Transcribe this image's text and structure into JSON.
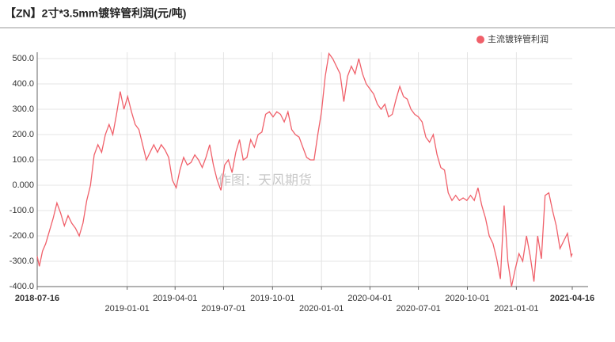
{
  "chart_data": {
    "type": "line",
    "title": "【ZN】2寸*3.5mm镀锌管利润(元/吨)",
    "annotations": [
      "作图：天风期货"
    ],
    "xlim": [
      "2018-07-16",
      "2021-04-16"
    ],
    "xticks": [
      "2018-07-16",
      "2019-01-01",
      "2019-04-01",
      "2019-07-01",
      "2019-10-01",
      "2020-01-01",
      "2020-04-01",
      "2020-07-01",
      "2020-10-01",
      "2021-01-01",
      "2021-04-16"
    ],
    "ylim": [
      -400,
      500
    ],
    "yticks": [
      {
        "value": 500,
        "label": "500.0"
      },
      {
        "value": 400,
        "label": "400.0"
      },
      {
        "value": 300,
        "label": "300.0"
      },
      {
        "value": 200,
        "label": "200.0"
      },
      {
        "value": 100,
        "label": "100.0"
      },
      {
        "value": 0,
        "label": "0.000"
      },
      {
        "value": -100,
        "label": "-100.0"
      },
      {
        "value": -200,
        "label": "-200.0"
      },
      {
        "value": -300,
        "label": "-300.0"
      },
      {
        "value": -400,
        "label": "-400.0"
      }
    ],
    "grid": true,
    "legend": "top-right",
    "x": [
      "2018-07-16",
      "2018-07-20",
      "2018-07-26",
      "2018-08-01",
      "2018-08-08",
      "2018-08-15",
      "2018-08-22",
      "2018-08-29",
      "2018-09-05",
      "2018-09-12",
      "2018-09-19",
      "2018-09-26",
      "2018-10-03",
      "2018-10-10",
      "2018-10-17",
      "2018-10-24",
      "2018-10-31",
      "2018-11-07",
      "2018-11-14",
      "2018-11-21",
      "2018-11-28",
      "2018-12-05",
      "2018-12-12",
      "2018-12-19",
      "2018-12-26",
      "2019-01-02",
      "2019-01-09",
      "2019-01-16",
      "2019-01-23",
      "2019-01-30",
      "2019-02-06",
      "2019-02-13",
      "2019-02-20",
      "2019-02-27",
      "2019-03-06",
      "2019-03-13",
      "2019-03-20",
      "2019-03-27",
      "2019-04-03",
      "2019-04-10",
      "2019-04-17",
      "2019-04-24",
      "2019-05-01",
      "2019-05-08",
      "2019-05-15",
      "2019-05-22",
      "2019-05-29",
      "2019-06-05",
      "2019-06-12",
      "2019-06-19",
      "2019-06-26",
      "2019-07-03",
      "2019-07-10",
      "2019-07-17",
      "2019-07-24",
      "2019-07-31",
      "2019-08-07",
      "2019-08-14",
      "2019-08-21",
      "2019-08-28",
      "2019-09-04",
      "2019-09-11",
      "2019-09-18",
      "2019-09-25",
      "2019-10-02",
      "2019-10-09",
      "2019-10-16",
      "2019-10-23",
      "2019-10-30",
      "2019-11-06",
      "2019-11-13",
      "2019-11-20",
      "2019-11-27",
      "2019-12-04",
      "2019-12-11",
      "2019-12-18",
      "2019-12-25",
      "2020-01-01",
      "2020-01-08",
      "2020-01-15",
      "2020-01-22",
      "2020-02-05",
      "2020-02-12",
      "2020-02-19",
      "2020-02-26",
      "2020-03-04",
      "2020-03-11",
      "2020-03-18",
      "2020-03-25",
      "2020-04-01",
      "2020-04-08",
      "2020-04-15",
      "2020-04-22",
      "2020-04-29",
      "2020-05-06",
      "2020-05-13",
      "2020-05-20",
      "2020-05-27",
      "2020-06-03",
      "2020-06-10",
      "2020-06-17",
      "2020-06-24",
      "2020-07-01",
      "2020-07-08",
      "2020-07-15",
      "2020-07-22",
      "2020-07-29",
      "2020-08-05",
      "2020-08-12",
      "2020-08-19",
      "2020-08-26",
      "2020-09-02",
      "2020-09-09",
      "2020-09-16",
      "2020-09-23",
      "2020-09-30",
      "2020-10-07",
      "2020-10-14",
      "2020-10-21",
      "2020-10-28",
      "2020-11-04",
      "2020-11-11",
      "2020-11-18",
      "2020-11-25",
      "2020-12-02",
      "2020-12-09",
      "2020-12-16",
      "2020-12-23",
      "2020-12-30",
      "2021-01-06",
      "2021-01-13",
      "2021-01-20",
      "2021-01-27",
      "2021-02-03",
      "2021-02-10",
      "2021-02-17",
      "2021-02-24",
      "2021-03-03",
      "2021-03-10",
      "2021-03-17",
      "2021-03-24",
      "2021-03-31",
      "2021-04-07",
      "2021-04-14",
      "2021-04-16"
    ],
    "series": [
      {
        "name": "主流镀锌管利润",
        "color": "#f0606a",
        "values": [
          -280,
          -320,
          -260,
          -230,
          -180,
          -130,
          -70,
          -110,
          -160,
          -120,
          -150,
          -170,
          -200,
          -150,
          -60,
          0,
          120,
          160,
          130,
          200,
          240,
          200,
          280,
          370,
          300,
          350,
          290,
          240,
          220,
          160,
          100,
          130,
          160,
          130,
          160,
          140,
          110,
          20,
          -10,
          60,
          110,
          80,
          90,
          120,
          100,
          70,
          110,
          160,
          80,
          20,
          -20,
          80,
          100,
          50,
          130,
          180,
          100,
          110,
          180,
          150,
          200,
          210,
          280,
          290,
          270,
          290,
          280,
          250,
          290,
          220,
          200,
          190,
          150,
          110,
          100,
          100,
          200,
          290,
          430,
          520,
          500,
          440,
          330,
          430,
          470,
          440,
          500,
          440,
          400,
          380,
          360,
          320,
          300,
          320,
          270,
          280,
          340,
          390,
          350,
          340,
          300,
          280,
          270,
          250,
          190,
          170,
          200,
          120,
          70,
          60,
          -30,
          -60,
          -40,
          -60,
          -50,
          -60,
          -40,
          -60,
          -10,
          -80,
          -130,
          -200,
          -230,
          -290,
          -370,
          -80,
          -300,
          -400,
          -330,
          -270,
          -300,
          -200,
          -280,
          -380,
          -200,
          -290,
          -40,
          -30,
          -100,
          -160,
          -250,
          -220,
          -190,
          -280,
          -270
        ]
      }
    ]
  }
}
